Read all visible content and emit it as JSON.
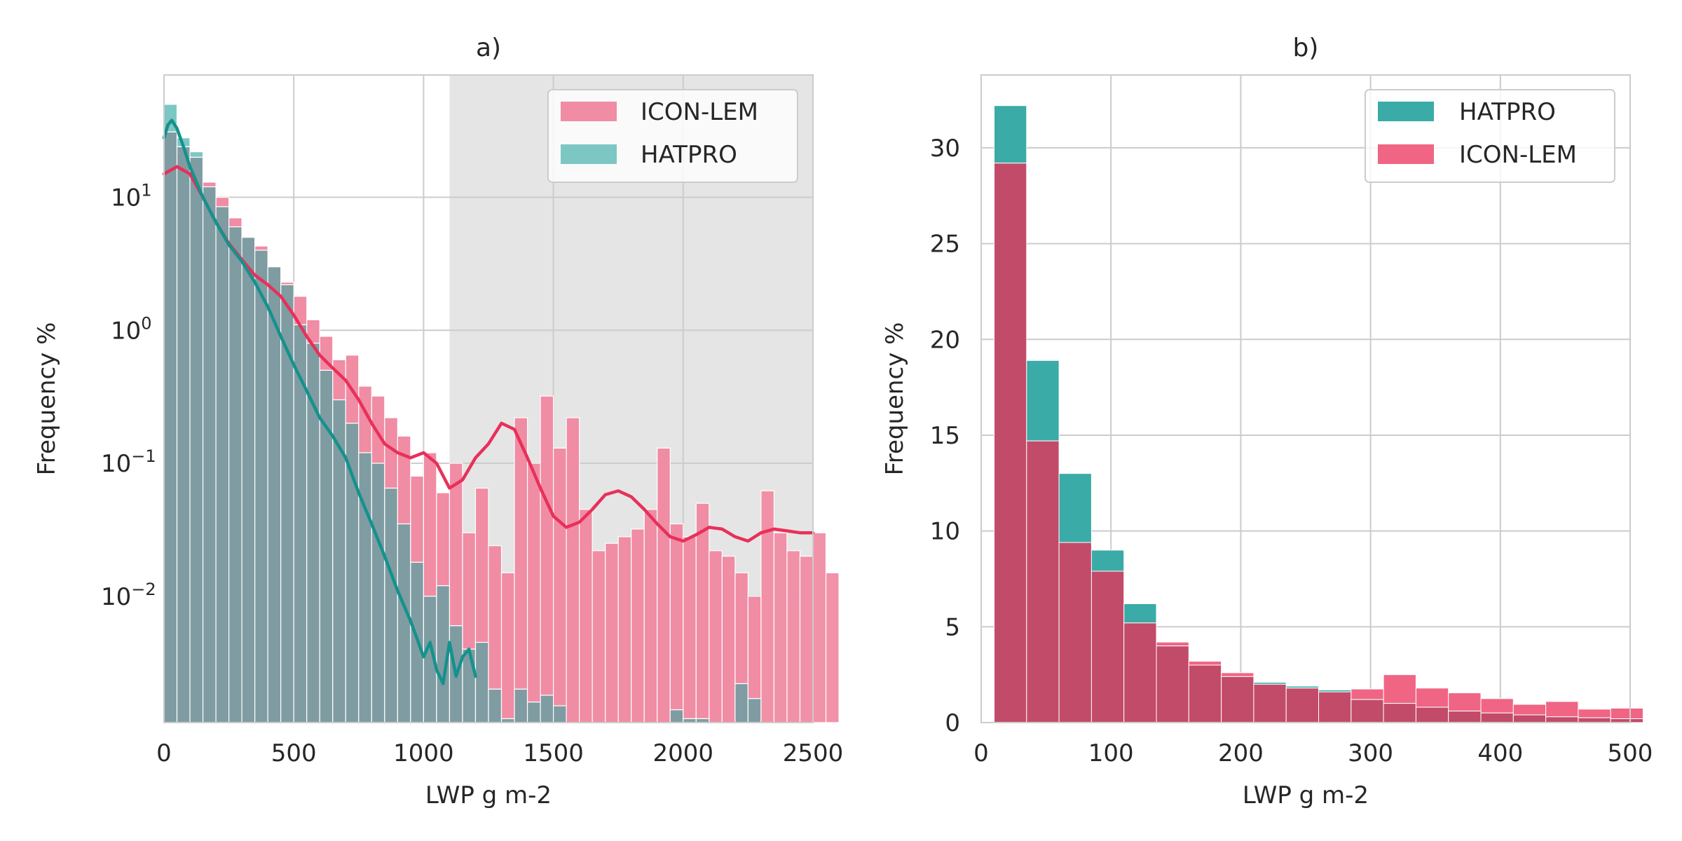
{
  "chart_data": [
    {
      "type": "bar",
      "panel_label": "a)",
      "xlabel": "LWP g m-2",
      "ylabel": "Frequency %",
      "xlim": [
        0,
        2500
      ],
      "ylim_log10": [
        -2.95,
        1.92
      ],
      "yscale": "log",
      "x_ticks": [
        0,
        500,
        1000,
        1500,
        2000,
        2500
      ],
      "x_tick_labels": [
        "0",
        "500",
        "1000",
        "1500",
        "2000",
        "2500"
      ],
      "y_ticks_log10": [
        -2,
        -1,
        0,
        1
      ],
      "y_tick_labels": [
        {
          "base": "10",
          "exp": "−2"
        },
        {
          "base": "10",
          "exp": "−1"
        },
        {
          "base": "10",
          "exp": "0"
        },
        {
          "base": "10",
          "exp": "1"
        }
      ],
      "grid": true,
      "shaded_region": {
        "x_start": 1100,
        "x_end": 2500,
        "color": "#e5e5e5"
      },
      "legend": {
        "position": "top-right",
        "entries": [
          "ICON-LEM",
          "HATPRO"
        ]
      },
      "bin_width": 50,
      "series": [
        {
          "name": "ICON-LEM",
          "color": "#e8305a",
          "bar_fill": "#f08ca4",
          "bins_start": 0,
          "values": [
            31,
            24,
            20,
            13,
            10,
            7,
            5,
            4.3,
            3.0,
            2.3,
            1.8,
            1.2,
            0.9,
            0.6,
            0.65,
            0.38,
            0.32,
            0.22,
            0.16,
            0.08,
            0.12,
            0.06,
            0.1,
            0.03,
            0.065,
            0.024,
            0.015,
            0.22,
            0.1,
            0.32,
            0.13,
            0.22,
            0.045,
            0.022,
            0.025,
            0.028,
            0.032,
            0.045,
            0.13,
            0.035,
            0.028,
            0.05,
            0.022,
            0.02,
            0.015,
            0.01,
            0.062,
            0.03,
            0.022,
            0.02,
            0.03,
            0.015
          ],
          "kde": [
            [
              0,
              15
            ],
            [
              50,
              17
            ],
            [
              100,
              15
            ],
            [
              150,
              10
            ],
            [
              200,
              6.5
            ],
            [
              250,
              4.5
            ],
            [
              300,
              3.4
            ],
            [
              350,
              2.6
            ],
            [
              400,
              2.2
            ],
            [
              450,
              1.8
            ],
            [
              500,
              1.3
            ],
            [
              550,
              0.9
            ],
            [
              600,
              0.65
            ],
            [
              650,
              0.52
            ],
            [
              700,
              0.42
            ],
            [
              750,
              0.3
            ],
            [
              800,
              0.2
            ],
            [
              850,
              0.14
            ],
            [
              900,
              0.12
            ],
            [
              950,
              0.11
            ],
            [
              1000,
              0.12
            ],
            [
              1050,
              0.1
            ],
            [
              1100,
              0.065
            ],
            [
              1150,
              0.075
            ],
            [
              1200,
              0.11
            ],
            [
              1250,
              0.14
            ],
            [
              1300,
              0.2
            ],
            [
              1350,
              0.18
            ],
            [
              1400,
              0.11
            ],
            [
              1450,
              0.065
            ],
            [
              1500,
              0.04
            ],
            [
              1550,
              0.033
            ],
            [
              1600,
              0.036
            ],
            [
              1650,
              0.045
            ],
            [
              1700,
              0.058
            ],
            [
              1750,
              0.062
            ],
            [
              1800,
              0.056
            ],
            [
              1850,
              0.045
            ],
            [
              1900,
              0.035
            ],
            [
              1950,
              0.028
            ],
            [
              2000,
              0.026
            ],
            [
              2050,
              0.029
            ],
            [
              2100,
              0.033
            ],
            [
              2150,
              0.032
            ],
            [
              2200,
              0.028
            ],
            [
              2250,
              0.026
            ],
            [
              2300,
              0.03
            ],
            [
              2350,
              0.032
            ],
            [
              2400,
              0.031
            ],
            [
              2450,
              0.03
            ],
            [
              2500,
              0.03
            ]
          ]
        },
        {
          "name": "HATPRO",
          "color": "#14928c",
          "bar_fill": "#7cc7c4",
          "overlap_fill": "#7f9ca2",
          "bins_start": 0,
          "values": [
            50,
            28,
            22,
            12,
            8.5,
            6,
            5,
            4,
            3,
            2.2,
            1.1,
            0.8,
            0.5,
            0.3,
            0.2,
            0.12,
            0.1,
            0.065,
            0.035,
            0.018,
            0.01,
            0.012,
            0.006,
            0.004,
            0.0045,
            0.002,
            0.0012,
            0.002,
            0.0016,
            0.0018,
            0.0015,
            0.001,
            0.0011,
            0.001,
            0.0011,
            0.001,
            0.0011,
            0.001,
            0.0011,
            0.0014,
            0.0012,
            0.0012,
            0.001,
            0.001,
            0.0022,
            0.0017
          ],
          "kde": [
            [
              0,
              28
            ],
            [
              15,
              35
            ],
            [
              30,
              38
            ],
            [
              50,
              33
            ],
            [
              75,
              24
            ],
            [
              100,
              17
            ],
            [
              150,
              10
            ],
            [
              200,
              6.5
            ],
            [
              250,
              4.4
            ],
            [
              300,
              3.3
            ],
            [
              350,
              2.3
            ],
            [
              400,
              1.5
            ],
            [
              450,
              0.9
            ],
            [
              500,
              0.55
            ],
            [
              550,
              0.35
            ],
            [
              600,
              0.22
            ],
            [
              650,
              0.16
            ],
            [
              700,
              0.11
            ],
            [
              750,
              0.06
            ],
            [
              800,
              0.035
            ],
            [
              850,
              0.02
            ],
            [
              900,
              0.011
            ],
            [
              950,
              0.0065
            ],
            [
              980,
              0.0045
            ],
            [
              1000,
              0.0035
            ],
            [
              1025,
              0.0045
            ],
            [
              1050,
              0.0028
            ],
            [
              1075,
              0.0022
            ],
            [
              1100,
              0.0045
            ],
            [
              1125,
              0.0025
            ],
            [
              1150,
              0.0035
            ],
            [
              1175,
              0.004
            ],
            [
              1200,
              0.0025
            ]
          ]
        }
      ]
    },
    {
      "type": "bar",
      "panel_label": "b)",
      "xlabel": "LWP g m-2",
      "ylabel": "Frequency %",
      "xlim": [
        0,
        500
      ],
      "ylim": [
        0,
        33.8
      ],
      "x_ticks": [
        0,
        100,
        200,
        300,
        400,
        500
      ],
      "x_tick_labels": [
        "0",
        "100",
        "200",
        "300",
        "400",
        "500"
      ],
      "y_ticks": [
        0,
        5,
        10,
        15,
        20,
        25,
        30
      ],
      "y_tick_labels": [
        "0",
        "5",
        "10",
        "15",
        "20",
        "25",
        "30"
      ],
      "grid": true,
      "legend": {
        "position": "top-right",
        "entries": [
          "HATPRO",
          "ICON-LEM"
        ]
      },
      "bin_width": 25,
      "bins_start": 10,
      "series": [
        {
          "name": "HATPRO",
          "color": "#3aaba6",
          "values": [
            32.2,
            18.9,
            13.0,
            9.0,
            6.2,
            4.0,
            3.0,
            2.4,
            2.1,
            1.9,
            1.7,
            1.2,
            1.0,
            0.8,
            0.6,
            0.5,
            0.4,
            0.3,
            0.25,
            0.2
          ]
        },
        {
          "name": "ICON-LEM",
          "color": "#f06584",
          "overlap_fill": "#c24b69",
          "values": [
            29.2,
            14.7,
            9.4,
            7.9,
            5.2,
            4.2,
            3.2,
            2.6,
            2.0,
            1.8,
            1.6,
            1.75,
            2.5,
            1.8,
            1.55,
            1.25,
            0.95,
            1.1,
            0.7,
            0.75
          ]
        }
      ]
    }
  ]
}
